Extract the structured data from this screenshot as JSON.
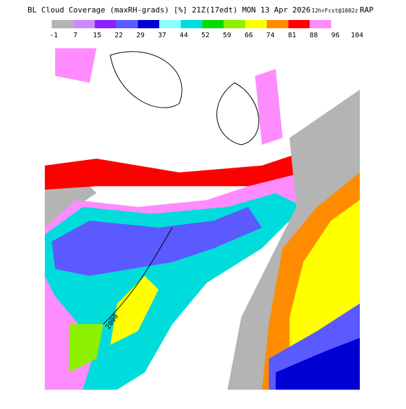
{
  "header": {
    "title": "BL Cloud Coverage (maxRH-grads) [%] 21Z(17edt) MON 13 Apr 2026",
    "forecast": "12hrFcst@1002z",
    "model": "RAP"
  },
  "colorbar": {
    "labels": [
      -1,
      7,
      15,
      22,
      29,
      37,
      44,
      52,
      59,
      66,
      74,
      81,
      88,
      96,
      104
    ],
    "colors": [
      "#b4b4b4",
      "#c88cff",
      "#8c1eff",
      "#5a5aff",
      "#0000d2",
      "#8cffff",
      "#00dcdc",
      "#00dc00",
      "#8cf000",
      "#ffff00",
      "#ff8c00",
      "#ff0000",
      "#ff8cff"
    ]
  },
  "map": {
    "contour_label": "2000"
  }
}
